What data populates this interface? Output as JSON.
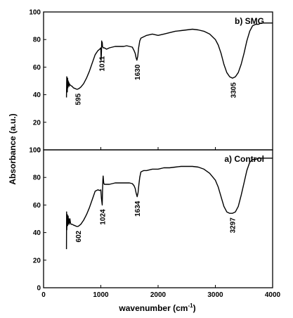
{
  "chart_data": [
    {
      "type": "line",
      "panel": "top",
      "label": "b) SMG",
      "xlabel": "wavenumber (cm-1)",
      "ylabel": "Absorbance (a.u.)",
      "xlim": [
        0,
        4000
      ],
      "ylim": [
        0,
        100
      ],
      "x_ticks": [
        0,
        1000,
        2000,
        3000,
        4000
      ],
      "y_ticks": [
        0,
        20,
        40,
        60,
        80,
        100
      ],
      "annotations": [
        {
          "text": "595",
          "x": 595
        },
        {
          "text": "1011",
          "x": 1011
        },
        {
          "text": "1630",
          "x": 1630
        },
        {
          "text": "3305",
          "x": 3305
        }
      ],
      "series": [
        {
          "x": [
            400,
            405,
            410,
            415,
            420,
            425,
            430,
            435,
            440,
            445,
            450,
            460,
            470,
            480,
            500,
            520,
            550,
            575,
            595,
            620,
            650,
            700,
            750,
            800,
            850,
            900,
            950,
            980,
            1000,
            1005,
            1011,
            1015,
            1020,
            1025,
            1030,
            1040,
            1060,
            1100,
            1150,
            1200,
            1250,
            1300,
            1350,
            1400,
            1450,
            1500,
            1550,
            1580,
            1600,
            1615,
            1630,
            1645,
            1660,
            1680,
            1700,
            1750,
            1800,
            1900,
            2000,
            2100,
            2200,
            2300,
            2400,
            2500,
            2600,
            2700,
            2800,
            2900,
            3000,
            3050,
            3100,
            3150,
            3200,
            3250,
            3300,
            3350,
            3400,
            3450,
            3500,
            3550,
            3600,
            3650,
            3700,
            3750,
            3800,
            3850,
            3900,
            4000
          ],
          "y": [
            38,
            53,
            47,
            42,
            52,
            45,
            50,
            47,
            49,
            46,
            48,
            47,
            47,
            46.5,
            46,
            45,
            44.5,
            44,
            44,
            44.5,
            45.5,
            48,
            52,
            57,
            63,
            69,
            72,
            73,
            74,
            65,
            71,
            79,
            75,
            78,
            75,
            74,
            74,
            73,
            74,
            74.5,
            75,
            75,
            75,
            75,
            75.5,
            75,
            74.5,
            72,
            70,
            67,
            65,
            68,
            74,
            79,
            81,
            82,
            83,
            84,
            83,
            84,
            85,
            86,
            86.5,
            87,
            87.5,
            87,
            86,
            84,
            80,
            76,
            70,
            62,
            56,
            53,
            52,
            53,
            56,
            62,
            70,
            79,
            86,
            90,
            91,
            91,
            92,
            92,
            92,
            92
          ]
        }
      ]
    },
    {
      "type": "line",
      "panel": "bottom",
      "label": "a) Control",
      "xlabel": "wavenumber (cm-1)",
      "ylabel": "Absorbance (a.u.)",
      "xlim": [
        0,
        4000
      ],
      "ylim": [
        0,
        100
      ],
      "x_ticks": [
        0,
        1000,
        2000,
        3000,
        4000
      ],
      "y_ticks": [
        0,
        20,
        40,
        60,
        80,
        100
      ],
      "annotations": [
        {
          "text": "602",
          "x": 602
        },
        {
          "text": "1024",
          "x": 1024
        },
        {
          "text": "1634",
          "x": 1634
        },
        {
          "text": "3297",
          "x": 3297
        }
      ],
      "series": [
        {
          "x": [
            400,
            403,
            406,
            410,
            415,
            420,
            425,
            430,
            435,
            440,
            445,
            450,
            455,
            460,
            470,
            480,
            500,
            520,
            550,
            575,
            602,
            620,
            650,
            700,
            750,
            800,
            850,
            900,
            950,
            980,
            1000,
            1010,
            1024,
            1030,
            1035,
            1040,
            1050,
            1060,
            1080,
            1100,
            1150,
            1200,
            1250,
            1300,
            1350,
            1400,
            1450,
            1500,
            1550,
            1580,
            1600,
            1615,
            1634,
            1650,
            1665,
            1680,
            1700,
            1750,
            1800,
            1900,
            2000,
            2100,
            2200,
            2300,
            2400,
            2500,
            2600,
            2700,
            2800,
            2900,
            3000,
            3050,
            3100,
            3150,
            3200,
            3250,
            3297,
            3350,
            3400,
            3450,
            3500,
            3550,
            3600,
            3650,
            3700,
            3750,
            3800,
            3850,
            3900,
            4000
          ],
          "y": [
            28,
            55,
            42,
            48,
            53,
            45,
            46,
            52,
            47,
            50,
            46,
            48,
            47,
            50,
            47,
            46,
            46,
            45.5,
            45,
            44.5,
            44.5,
            45,
            46,
            49,
            53,
            58,
            64,
            70,
            71,
            70.5,
            71,
            65,
            60,
            70,
            78,
            81,
            76,
            75,
            75,
            75,
            75,
            75.5,
            76,
            76,
            76,
            76,
            76,
            76,
            75.5,
            74,
            72,
            69,
            66,
            69,
            75,
            80,
            84,
            85,
            85,
            86,
            86,
            87,
            87,
            87.5,
            88,
            88,
            88,
            87.5,
            86,
            83,
            78,
            73,
            66,
            59,
            55,
            54,
            54,
            55,
            59,
            67,
            76,
            85,
            91,
            93,
            93,
            94,
            94,
            94,
            94,
            94
          ]
        }
      ]
    }
  ]
}
